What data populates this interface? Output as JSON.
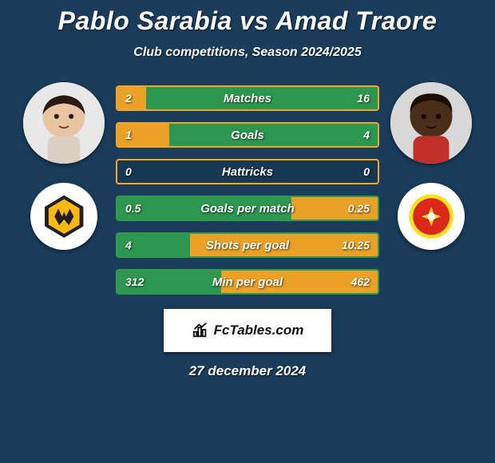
{
  "theme": {
    "background": "#1a3d5c",
    "text_color": "#ffffff",
    "title_fontsize": 32,
    "subtitle_fontsize": 16,
    "bar_label_fontsize": 15,
    "bar_value_fontsize": 14,
    "branding_bg": "#ffffff",
    "branding_text": "#111111"
  },
  "title": "Pablo Sarabia vs Amad Traore",
  "subtitle": "Club competitions, Season 2024/2025",
  "date": "27 december 2024",
  "branding": "FcTables.com",
  "player_left": {
    "name": "Pablo Sarabia",
    "skin": "#e8c4a3",
    "hair": "#2a1a10",
    "club": "Wolverhampton",
    "club_primary": "#fdb913",
    "club_secondary": "#231f20"
  },
  "player_right": {
    "name": "Amad Traore",
    "skin": "#4a2e1a",
    "hair": "#1a0e05",
    "club": "Manchester United",
    "club_primary": "#da291c",
    "club_secondary": "#fbe122"
  },
  "stats": [
    {
      "label": "Matches",
      "v1": "2",
      "v2": "16",
      "pct1": 11,
      "pct2": 89,
      "c1": "#f5a623",
      "c2": "#2e9b4f"
    },
    {
      "label": "Goals",
      "v1": "1",
      "v2": "4",
      "pct1": 20,
      "pct2": 80,
      "c1": "#f5a623",
      "c2": "#2e9b4f"
    },
    {
      "label": "Hattricks",
      "v1": "0",
      "v2": "0",
      "pct1": 0,
      "pct2": 0,
      "c1": "#f5a623",
      "c2": "#2e9b4f"
    },
    {
      "label": "Goals per match",
      "v1": "0.5",
      "v2": "0.25",
      "pct1": 67,
      "pct2": 33,
      "c1": "#2e9b4f",
      "c2": "#f5a623"
    },
    {
      "label": "Shots per goal",
      "v1": "4",
      "v2": "10.25",
      "pct1": 28,
      "pct2": 72,
      "c1": "#2e9b4f",
      "c2": "#f5a623"
    },
    {
      "label": "Min per goal",
      "v1": "312",
      "v2": "462",
      "pct1": 40,
      "pct2": 60,
      "c1": "#2e9b4f",
      "c2": "#f5a623"
    }
  ],
  "bar_style": {
    "height": 32,
    "gap": 14,
    "border_width": 2,
    "border_radius": 4,
    "track_bg": "rgba(0,0,0,0.08)"
  }
}
